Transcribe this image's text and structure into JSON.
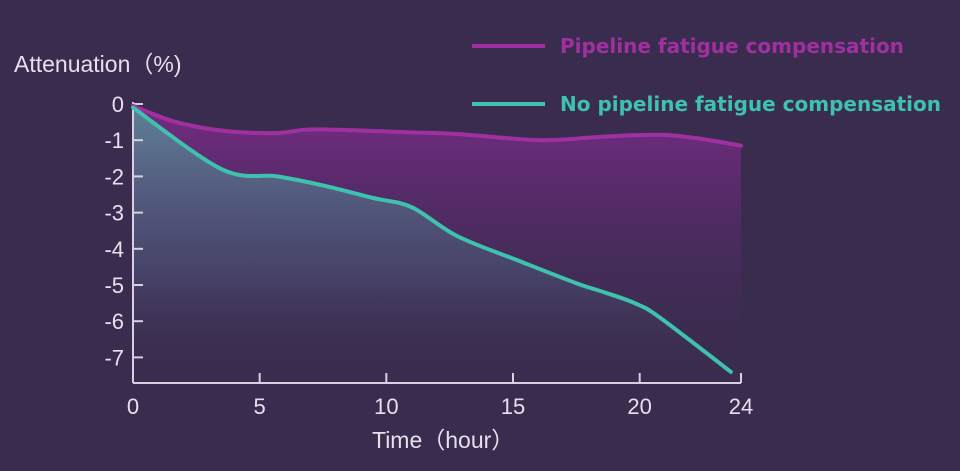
{
  "chart_data": {
    "type": "area",
    "xlabel": "Time（hour）",
    "ylabel": "Attenuation（%)",
    "xlim": [
      0,
      24
    ],
    "ylim": [
      -7.6,
      0
    ],
    "x_ticks": [
      "0",
      "5",
      "10",
      "15",
      "20",
      "24"
    ],
    "y_ticks": [
      "0",
      "-1",
      "-2",
      "-3",
      "-4",
      "-5",
      "-6",
      "-7"
    ],
    "grid": false,
    "legend_position": "top-right",
    "series": [
      {
        "name": "Pipeline fatigue compensation",
        "color": "#a0309f",
        "x": [
          0,
          1.7,
          3.7,
          5.7,
          7.2,
          10.8,
          12.8,
          16.1,
          18.6,
          20.8,
          22.3,
          24
        ],
        "y": [
          -0.05,
          -0.5,
          -0.75,
          -0.8,
          -0.7,
          -0.78,
          -0.83,
          -1.0,
          -0.9,
          -0.85,
          -0.95,
          -1.15
        ]
      },
      {
        "name": "No pipeline fatigue compensation",
        "color": "#3ec1ad",
        "x": [
          0,
          3.5,
          5.7,
          7.5,
          9.5,
          11,
          12.8,
          15.3,
          17.5,
          18.6,
          19.8,
          20.8,
          23.6
        ],
        "y": [
          -0.1,
          -1.8,
          -2.0,
          -2.25,
          -2.6,
          -2.85,
          -3.65,
          -4.35,
          -4.95,
          -5.2,
          -5.5,
          -5.9,
          -7.4
        ]
      }
    ]
  }
}
